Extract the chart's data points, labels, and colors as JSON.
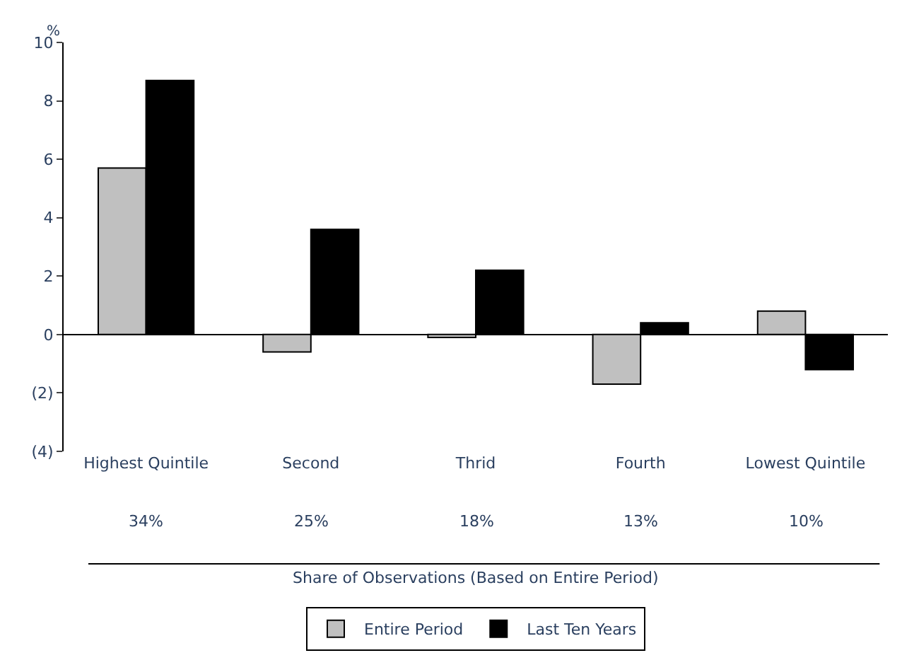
{
  "chart_data": {
    "type": "bar",
    "categories": [
      "Highest Quintile",
      "Second",
      "Thrid",
      "Fourth",
      "Lowest Quintile"
    ],
    "series": [
      {
        "name": "Entire Period",
        "color": "#c0c0c0",
        "values": [
          5.7,
          -0.6,
          -0.1,
          -1.7,
          0.8
        ]
      },
      {
        "name": "Last Ten Years",
        "color": "#000000",
        "values": [
          8.7,
          3.6,
          2.2,
          0.4,
          -1.2
        ]
      }
    ],
    "ylim": [
      -4,
      10
    ],
    "yticks": [
      {
        "value": -4,
        "label": "(4)"
      },
      {
        "value": -2,
        "label": "(2)"
      },
      0,
      2,
      4,
      6,
      8,
      10
    ],
    "ylabel": "%",
    "annotations": [
      "34%",
      "25%",
      "18%",
      "13%",
      "10%",
      "Share of Observations (Based on Entire Period)"
    ],
    "legend": "bottom"
  }
}
